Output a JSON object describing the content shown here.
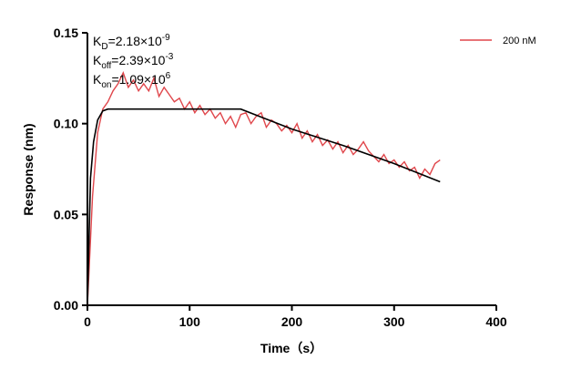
{
  "chart_data": {
    "type": "line",
    "xlabel": "Time（s）",
    "ylabel": "Response (nm)",
    "annotations": [
      {
        "symbol": "K",
        "subscript": "D",
        "text": "=2.18×10",
        "superscript": "-9"
      },
      {
        "symbol": "K",
        "subscript": "off",
        "text": "=2.39×10",
        "superscript": "-3"
      },
      {
        "symbol": "K",
        "subscript": "on",
        "text": "=1.09×10",
        "superscript": "6"
      }
    ],
    "xlim": [
      0,
      400
    ],
    "xticks": [
      0,
      100,
      200,
      300,
      400
    ],
    "ylim": [
      0,
      0.15
    ],
    "yticks": [
      {
        "value": 0,
        "label": "0.00"
      },
      0.05,
      {
        "value": 0.1,
        "label": "0.10"
      },
      0.15
    ],
    "legend": "top-right",
    "series": [
      {
        "name": "200 nM",
        "color": "#e0474c",
        "x": [
          0,
          5,
          10,
          15,
          20,
          25,
          30,
          35,
          40,
          45,
          50,
          55,
          60,
          65,
          70,
          75,
          80,
          85,
          90,
          95,
          100,
          105,
          110,
          115,
          120,
          125,
          130,
          135,
          140,
          145,
          150,
          155,
          160,
          165,
          170,
          175,
          180,
          185,
          190,
          195,
          200,
          205,
          210,
          215,
          220,
          225,
          230,
          235,
          240,
          245,
          250,
          255,
          260,
          265,
          270,
          275,
          280,
          285,
          290,
          295,
          300,
          305,
          310,
          315,
          320,
          325,
          330,
          335,
          340,
          345
        ],
        "values": [
          0,
          0.06,
          0.095,
          0.108,
          0.112,
          0.118,
          0.122,
          0.128,
          0.12,
          0.124,
          0.118,
          0.122,
          0.118,
          0.125,
          0.115,
          0.12,
          0.116,
          0.112,
          0.114,
          0.108,
          0.112,
          0.106,
          0.11,
          0.105,
          0.108,
          0.103,
          0.106,
          0.1,
          0.104,
          0.098,
          0.105,
          0.106,
          0.1,
          0.104,
          0.106,
          0.098,
          0.102,
          0.1,
          0.096,
          0.099,
          0.095,
          0.1,
          0.092,
          0.096,
          0.09,
          0.094,
          0.088,
          0.091,
          0.086,
          0.09,
          0.084,
          0.088,
          0.083,
          0.086,
          0.09,
          0.085,
          0.082,
          0.079,
          0.083,
          0.078,
          0.08,
          0.076,
          0.079,
          0.074,
          0.076,
          0.07,
          0.075,
          0.072,
          0.078,
          0.08
        ]
      },
      {
        "color": "#000000",
        "x": [
          0,
          3,
          6,
          10,
          15,
          20,
          150,
          200,
          250,
          300,
          345
        ],
        "values": [
          0,
          0.07,
          0.09,
          0.102,
          0.107,
          0.108,
          0.108,
          0.097,
          0.088,
          0.078,
          0.068
        ]
      }
    ]
  }
}
